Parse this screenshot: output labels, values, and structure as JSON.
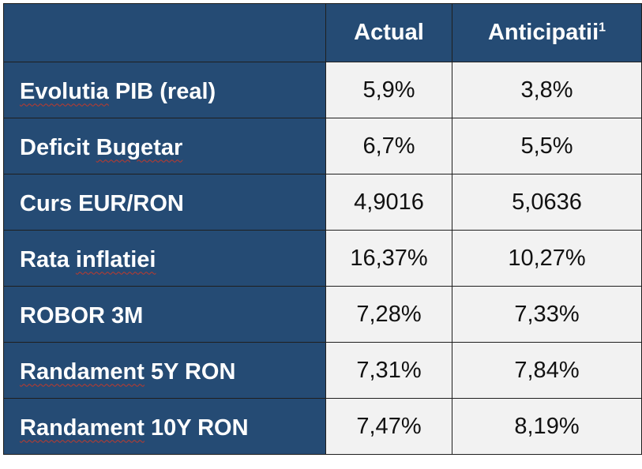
{
  "header": {
    "col1": "Actual",
    "col2": "Anticipatii",
    "col2_footnote": "1"
  },
  "rows": [
    {
      "pre": "",
      "mis": "Evolutia",
      "post": " PIB (real)",
      "actual": "5,9%",
      "anticipated": "3,8%"
    },
    {
      "pre": "Deficit ",
      "mis": "Bugetar",
      "post": "",
      "actual": "6,7%",
      "anticipated": "5,5%"
    },
    {
      "pre": "Curs EUR/RON",
      "mis": "",
      "post": "",
      "actual": "4,9016",
      "anticipated": "5,0636"
    },
    {
      "pre": "Rata ",
      "mis": "inflatiei",
      "post": "",
      "actual": "16,37%",
      "anticipated": "10,27%"
    },
    {
      "pre": "ROBOR 3M",
      "mis": "",
      "post": "",
      "actual": "7,28%",
      "anticipated": "7,33%"
    },
    {
      "pre": "",
      "mis": "Randament",
      "post": " 5Y RON",
      "actual": "7,31%",
      "anticipated": "7,84%"
    },
    {
      "pre": "",
      "mis": "Randament",
      "post": " 10Y RON",
      "actual": "7,47%",
      "anticipated": "8,19%"
    }
  ]
}
